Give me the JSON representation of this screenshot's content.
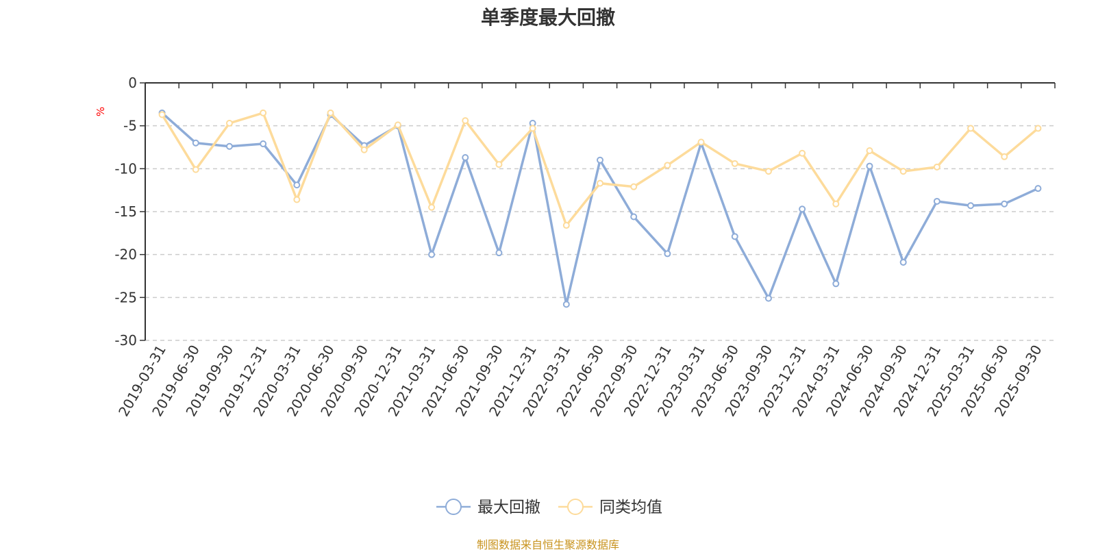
{
  "chart_data": {
    "type": "line",
    "title": "单季度最大回撤",
    "ylabel": "%",
    "ylim": [
      -30,
      0
    ],
    "yticks": [
      0,
      -5,
      -10,
      -15,
      -20,
      -25,
      -30
    ],
    "grid": true,
    "legend_position": "bottom",
    "categories": [
      "2019-03-31",
      "2019-06-30",
      "2019-09-30",
      "2019-12-31",
      "2020-03-31",
      "2020-06-30",
      "2020-09-30",
      "2020-12-31",
      "2021-03-31",
      "2021-06-30",
      "2021-09-30",
      "2021-12-31",
      "2022-03-31",
      "2022-06-30",
      "2022-09-30",
      "2022-12-31",
      "2023-03-31",
      "2023-06-30",
      "2023-09-30",
      "2023-12-31",
      "2024-03-31",
      "2024-06-30",
      "2024-09-30",
      "2024-12-31",
      "2025-03-31",
      "2025-06-30",
      "2025-09-30"
    ],
    "series": [
      {
        "name": "最大回撤",
        "color": "#8eacd8",
        "values": [
          -3.5,
          -7.0,
          -7.4,
          -7.1,
          -11.9,
          -3.7,
          -7.3,
          -5.0,
          -20.0,
          -8.7,
          -19.8,
          -4.7,
          -25.8,
          -9.0,
          -15.6,
          -19.9,
          -7.0,
          -17.9,
          -25.1,
          -14.7,
          -23.4,
          -9.7,
          -20.9,
          -13.8,
          -14.3,
          -14.1,
          -12.3
        ]
      },
      {
        "name": "同类均值",
        "color": "#fddb9b",
        "values": [
          -3.7,
          -10.1,
          -4.7,
          -3.5,
          -13.6,
          -3.5,
          -7.8,
          -4.9,
          -14.5,
          -4.4,
          -9.5,
          -5.3,
          -16.6,
          -11.7,
          -12.1,
          -9.6,
          -6.9,
          -9.4,
          -10.3,
          -8.2,
          -14.1,
          -7.9,
          -10.3,
          -9.8,
          -5.3,
          -8.6,
          -5.3
        ]
      }
    ]
  },
  "colors": {
    "axis": "#333333",
    "grid": "#cccccc",
    "ylabel": "#ff0000",
    "source": "#c8931e"
  },
  "legend": {
    "items": [
      "最大回撤",
      "同类均值"
    ]
  },
  "source_note": "制图数据来自恒生聚源数据库"
}
